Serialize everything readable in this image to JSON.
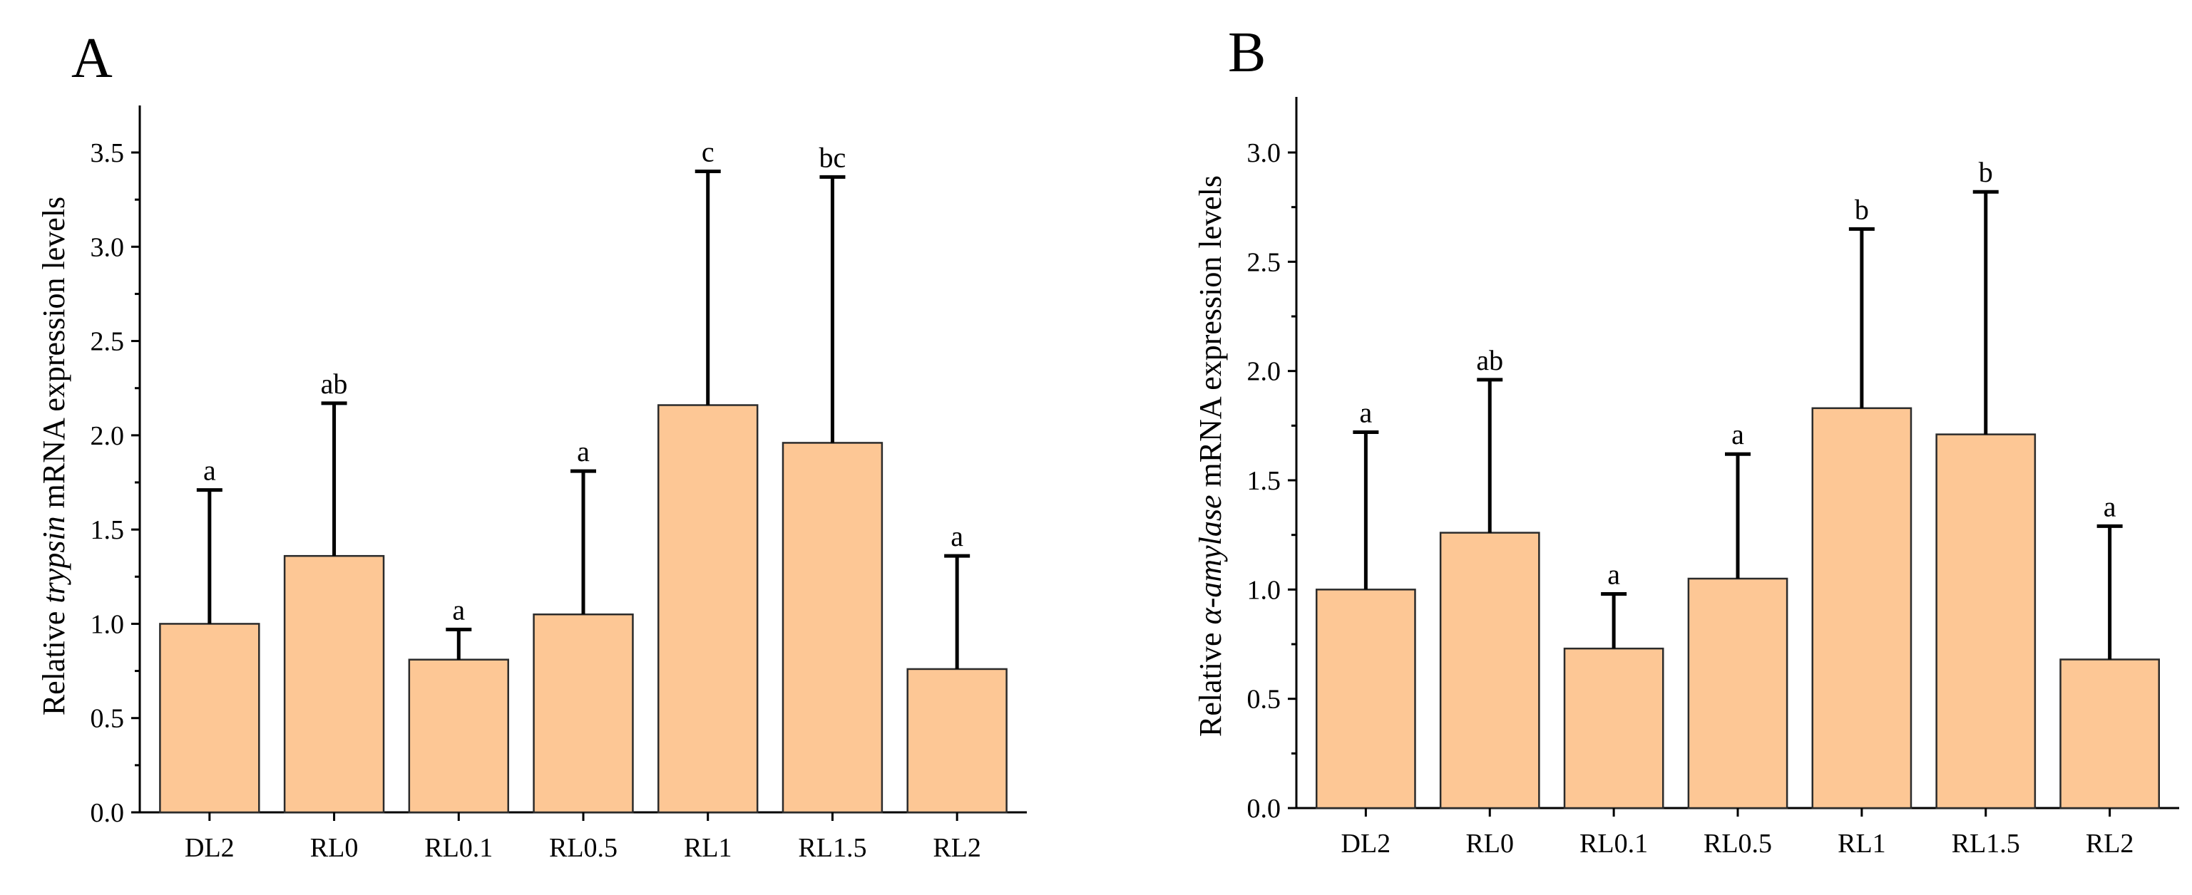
{
  "chart_data": [
    {
      "panel": "A",
      "type": "bar",
      "categories": [
        "DL2",
        "RL0",
        "RL0.1",
        "RL0.5",
        "RL1",
        "RL1.5",
        "RL2"
      ],
      "values": [
        1.0,
        1.36,
        0.81,
        1.05,
        2.16,
        1.96,
        0.76
      ],
      "errors": [
        0.71,
        0.81,
        0.16,
        0.76,
        1.24,
        1.41,
        0.6
      ],
      "significance": [
        "a",
        "ab",
        "a",
        "a",
        "c",
        "bc",
        "a"
      ],
      "ylabel_prefix": "Relative ",
      "ylabel_gene": "trypsin",
      "ylabel_suffix": " mRNA expression levels",
      "ylim": [
        0,
        3.75
      ],
      "yticks": [
        0.0,
        0.5,
        1.0,
        1.5,
        2.0,
        2.5,
        3.0,
        3.5
      ],
      "ytick_labels": [
        "0.0",
        "0.5",
        "1.0",
        "1.5",
        "2.0",
        "2.5",
        "3.0",
        "3.5"
      ],
      "bar_color": "#FDC795"
    },
    {
      "panel": "B",
      "type": "bar",
      "categories": [
        "DL2",
        "RL0",
        "RL0.1",
        "RL0.5",
        "RL1",
        "RL1.5",
        "RL2"
      ],
      "values": [
        1.0,
        1.26,
        0.73,
        1.05,
        1.83,
        1.71,
        0.68
      ],
      "errors": [
        0.72,
        0.7,
        0.25,
        0.57,
        0.82,
        1.11,
        0.61
      ],
      "significance": [
        "a",
        "ab",
        "a",
        "a",
        "b",
        "b",
        "a"
      ],
      "ylabel_prefix": "Relative ",
      "ylabel_gene": "α-amylase",
      "ylabel_suffix": " mRNA expression levels",
      "ylim": [
        0,
        3.25
      ],
      "yticks": [
        0.0,
        0.5,
        1.0,
        1.5,
        2.0,
        2.5,
        3.0
      ],
      "ytick_labels": [
        "0.0",
        "0.5",
        "1.0",
        "1.5",
        "2.0",
        "2.5",
        "3.0"
      ],
      "bar_color": "#FDC795"
    }
  ]
}
